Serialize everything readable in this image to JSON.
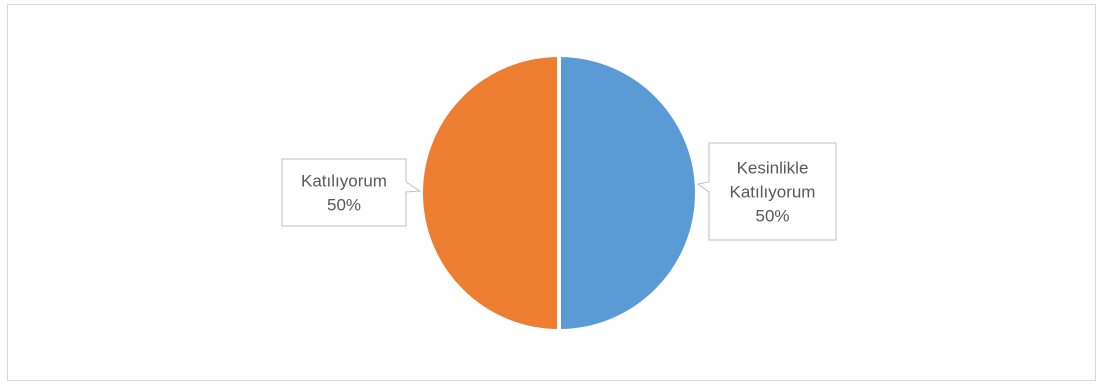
{
  "chart_data": {
    "type": "pie",
    "title": "",
    "slices": [
      {
        "label_lines": [
          "Kesinlikle",
          "Katılıyorum"
        ],
        "percent_label": "50%",
        "value": 50,
        "color": "#5b9bd5"
      },
      {
        "label_lines": [
          "Katılıyorum"
        ],
        "percent_label": "50%",
        "value": 50,
        "color": "#ed7d31"
      }
    ],
    "start_angle_deg": 0,
    "direction": "clockwise",
    "legend": "none",
    "data_labels": "callouts"
  }
}
